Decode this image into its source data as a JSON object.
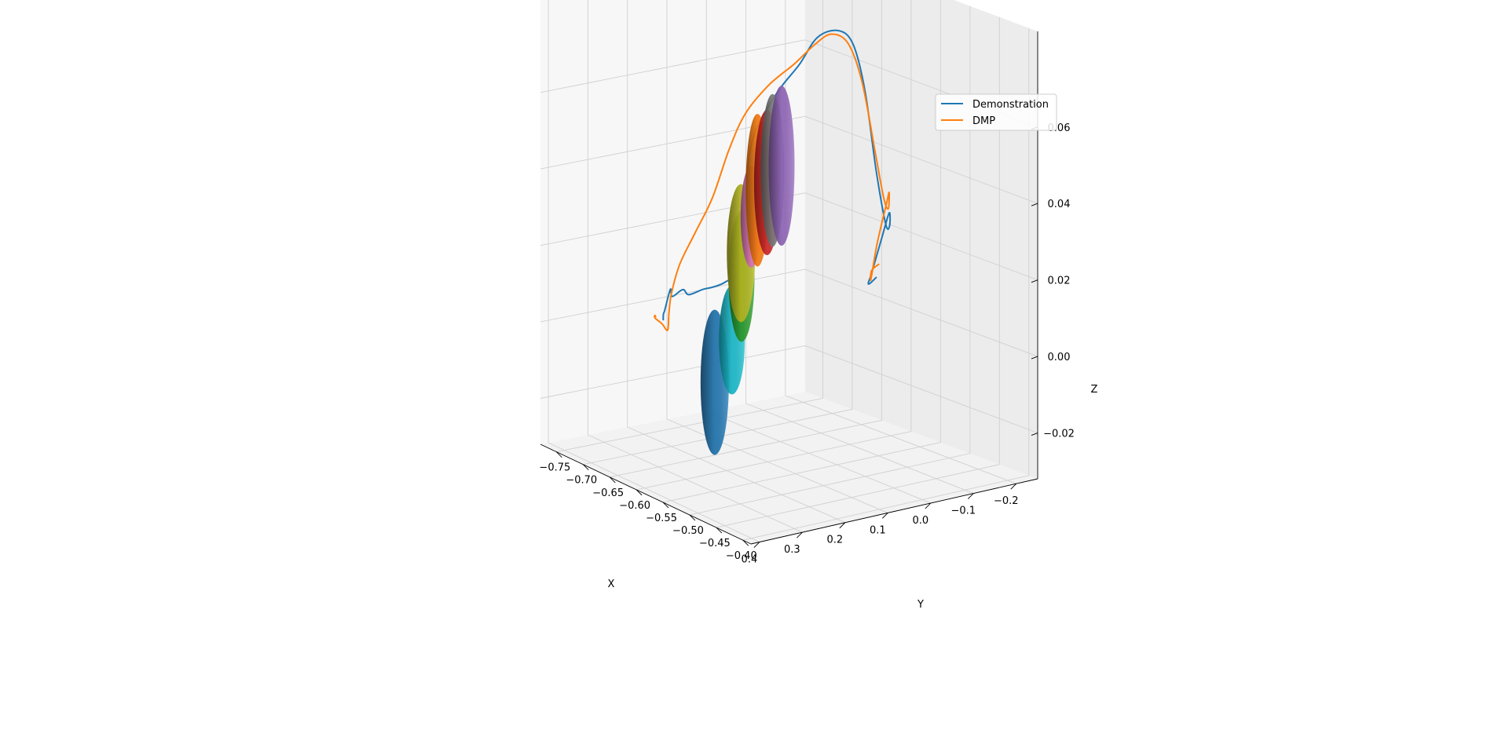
{
  "chart_data": {
    "type": "line",
    "projection": "3d",
    "xlabel": "X",
    "ylabel": "Y",
    "zlabel": "Z",
    "xlim": [
      -0.78,
      -0.385
    ],
    "ylim": [
      -0.25,
      0.42
    ],
    "zlim": [
      -0.032,
      0.085
    ],
    "x_ticks": [
      "−0.40",
      "−0.45",
      "−0.50",
      "−0.55",
      "−0.60",
      "−0.65",
      "−0.70",
      "−0.75"
    ],
    "x_tick_values": [
      -0.4,
      -0.45,
      -0.5,
      -0.55,
      -0.6,
      -0.65,
      -0.7,
      -0.75
    ],
    "y_ticks": [
      "−0.2",
      "−0.1",
      "0.0",
      "0.1",
      "0.2",
      "0.3",
      "0.4"
    ],
    "y_tick_values": [
      -0.2,
      -0.1,
      0.0,
      0.1,
      0.2,
      0.3,
      0.4
    ],
    "z_ticks": [
      "−0.02",
      "0.00",
      "0.02",
      "0.04",
      "0.06"
    ],
    "z_tick_values": [
      -0.02,
      0.0,
      0.02,
      0.04,
      0.06
    ],
    "grid": true,
    "legend": {
      "position": "top-right",
      "entries": [
        {
          "label": "Demonstration",
          "color": "#1f77b4"
        },
        {
          "label": "DMP",
          "color": "#ff7f0e"
        }
      ]
    },
    "series": [
      {
        "name": "Demonstration",
        "color": "#1f77b4",
        "points": [
          {
            "x": -0.715,
            "y": 0.2,
            "z": 0.0
          },
          {
            "x": -0.7,
            "y": 0.22,
            "z": 0.003
          },
          {
            "x": -0.69,
            "y": 0.23,
            "z": 0.005
          },
          {
            "x": -0.68,
            "y": 0.23,
            "z": 0.011
          },
          {
            "x": -0.68,
            "y": 0.225,
            "z": 0.009
          },
          {
            "x": -0.672,
            "y": 0.21,
            "z": 0.011
          },
          {
            "x": -0.665,
            "y": 0.205,
            "z": 0.01
          },
          {
            "x": -0.65,
            "y": 0.19,
            "z": 0.012
          },
          {
            "x": -0.64,
            "y": 0.18,
            "z": 0.013
          },
          {
            "x": -0.625,
            "y": 0.17,
            "z": 0.015
          },
          {
            "x": -0.61,
            "y": 0.155,
            "z": 0.019
          },
          {
            "x": -0.605,
            "y": 0.15,
            "z": 0.03
          },
          {
            "x": -0.603,
            "y": 0.145,
            "z": 0.045
          },
          {
            "x": -0.6,
            "y": 0.13,
            "z": 0.055
          },
          {
            "x": -0.59,
            "y": 0.09,
            "z": 0.065
          },
          {
            "x": -0.58,
            "y": 0.05,
            "z": 0.072
          },
          {
            "x": -0.57,
            "y": 0.02,
            "z": 0.079
          },
          {
            "x": -0.555,
            "y": -0.01,
            "z": 0.081
          },
          {
            "x": -0.54,
            "y": -0.025,
            "z": 0.078
          },
          {
            "x": -0.53,
            "y": -0.04,
            "z": 0.066
          },
          {
            "x": -0.525,
            "y": -0.06,
            "z": 0.045
          },
          {
            "x": -0.53,
            "y": -0.09,
            "z": 0.03
          },
          {
            "x": -0.545,
            "y": -0.12,
            "z": 0.028
          },
          {
            "x": -0.56,
            "y": -0.14,
            "z": 0.03
          },
          {
            "x": -0.58,
            "y": -0.15,
            "z": 0.022
          },
          {
            "x": -0.6,
            "y": -0.155,
            "z": 0.012
          },
          {
            "x": -0.61,
            "y": -0.16,
            "z": 0.008
          },
          {
            "x": -0.603,
            "y": -0.17,
            "z": 0.01
          }
        ]
      },
      {
        "name": "DMP",
        "color": "#ff7f0e",
        "points": [
          {
            "x": -0.728,
            "y": 0.2,
            "z": 0.0
          },
          {
            "x": -0.723,
            "y": 0.21,
            "z": 0.001
          },
          {
            "x": -0.715,
            "y": 0.22,
            "z": 0.001
          },
          {
            "x": -0.695,
            "y": 0.23,
            "z": 0.001
          },
          {
            "x": -0.685,
            "y": 0.23,
            "z": 0.0
          },
          {
            "x": -0.69,
            "y": 0.22,
            "z": 0.004
          },
          {
            "x": -0.7,
            "y": 0.2,
            "z": 0.008
          },
          {
            "x": -0.692,
            "y": 0.19,
            "z": 0.016
          },
          {
            "x": -0.675,
            "y": 0.175,
            "z": 0.025
          },
          {
            "x": -0.655,
            "y": 0.16,
            "z": 0.035
          },
          {
            "x": -0.64,
            "y": 0.14,
            "z": 0.048
          },
          {
            "x": -0.625,
            "y": 0.12,
            "z": 0.058
          },
          {
            "x": -0.605,
            "y": 0.09,
            "z": 0.066
          },
          {
            "x": -0.585,
            "y": 0.055,
            "z": 0.072
          },
          {
            "x": -0.572,
            "y": 0.025,
            "z": 0.077
          },
          {
            "x": -0.56,
            "y": 0.0,
            "z": 0.08
          },
          {
            "x": -0.545,
            "y": -0.02,
            "z": 0.078
          },
          {
            "x": -0.535,
            "y": -0.04,
            "z": 0.068
          },
          {
            "x": -0.527,
            "y": -0.06,
            "z": 0.05
          },
          {
            "x": -0.53,
            "y": -0.085,
            "z": 0.037
          },
          {
            "x": -0.54,
            "y": -0.11,
            "z": 0.033
          },
          {
            "x": -0.553,
            "y": -0.13,
            "z": 0.036
          },
          {
            "x": -0.568,
            "y": -0.145,
            "z": 0.032
          },
          {
            "x": -0.588,
            "y": -0.15,
            "z": 0.02
          },
          {
            "x": -0.6,
            "y": -0.152,
            "z": 0.01
          },
          {
            "x": -0.603,
            "y": -0.158,
            "z": 0.012
          },
          {
            "x": -0.595,
            "y": -0.165,
            "z": 0.014
          }
        ]
      }
    ],
    "ellipsoids": [
      {
        "color": "#1f77b4",
        "center": {
          "x": -0.64,
          "y": 0.175,
          "z": -0.012
        },
        "semi_axes": {
          "x": 0.012,
          "y": 0.012,
          "z": 0.02
        }
      },
      {
        "color": "#17becf",
        "center": {
          "x": -0.62,
          "y": 0.16,
          "z": 0.0
        },
        "semi_axes": {
          "x": 0.011,
          "y": 0.011,
          "z": 0.015
        }
      },
      {
        "color": "#2ca02c",
        "center": {
          "x": -0.61,
          "y": 0.15,
          "z": 0.017
        },
        "semi_axes": {
          "x": 0.011,
          "y": 0.011,
          "z": 0.018
        }
      },
      {
        "color": "#bcbd22",
        "center": {
          "x": -0.622,
          "y": 0.135,
          "z": 0.022
        },
        "semi_axes": {
          "x": 0.012,
          "y": 0.012,
          "z": 0.019
        }
      },
      {
        "color": "#e377c2",
        "center": {
          "x": -0.6,
          "y": 0.14,
          "z": 0.033
        },
        "semi_axes": {
          "x": 0.009,
          "y": 0.009,
          "z": 0.014
        }
      },
      {
        "color": "#ff7f0e",
        "center": {
          "x": -0.585,
          "y": 0.145,
          "z": 0.041
        },
        "semi_axes": {
          "x": 0.01,
          "y": 0.01,
          "z": 0.021
        }
      },
      {
        "color": "#d62728",
        "center": {
          "x": -0.59,
          "y": 0.115,
          "z": 0.042
        },
        "semi_axes": {
          "x": 0.011,
          "y": 0.011,
          "z": 0.02
        }
      },
      {
        "color": "#7f7f7f",
        "center": {
          "x": -0.578,
          "y": 0.118,
          "z": 0.046
        },
        "semi_axes": {
          "x": 0.01,
          "y": 0.01,
          "z": 0.021
        }
      },
      {
        "color": "#9467bd",
        "center": {
          "x": -0.575,
          "y": 0.1,
          "z": 0.047
        },
        "semi_axes": {
          "x": 0.011,
          "y": 0.011,
          "z": 0.022
        }
      }
    ]
  }
}
